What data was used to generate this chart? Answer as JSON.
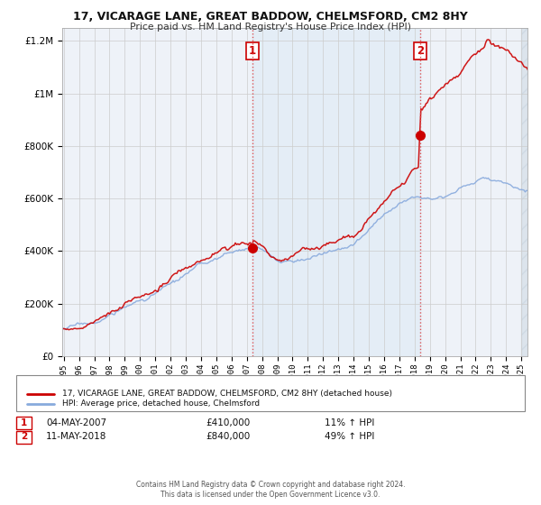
{
  "title": "17, VICARAGE LANE, GREAT BADDOW, CHELMSFORD, CM2 8HY",
  "subtitle": "Price paid vs. HM Land Registry's House Price Index (HPI)",
  "legend_line1": "17, VICARAGE LANE, GREAT BADDOW, CHELMSFORD, CM2 8HY (detached house)",
  "legend_line2": "HPI: Average price, detached house, Chelmsford",
  "annotation1_date": "04-MAY-2007",
  "annotation1_price": "£410,000",
  "annotation1_hpi": "11% ↑ HPI",
  "annotation1_year": 2007.35,
  "annotation1_value": 410000,
  "annotation2_date": "11-MAY-2018",
  "annotation2_price": "£840,000",
  "annotation2_hpi": "49% ↑ HPI",
  "annotation2_year": 2018.36,
  "annotation2_value": 840000,
  "line_color_property": "#cc0000",
  "line_color_hpi": "#88aadd",
  "background_color": "#ffffff",
  "plot_bg_color": "#eef2f8",
  "shading_color": "#d8e8f5",
  "grid_color": "#cccccc",
  "footer_text": "Contains HM Land Registry data © Crown copyright and database right 2024.\nThis data is licensed under the Open Government Licence v3.0.",
  "ylim": [
    0,
    1250000
  ],
  "xlim_start": 1994.9,
  "xlim_end": 2025.4
}
